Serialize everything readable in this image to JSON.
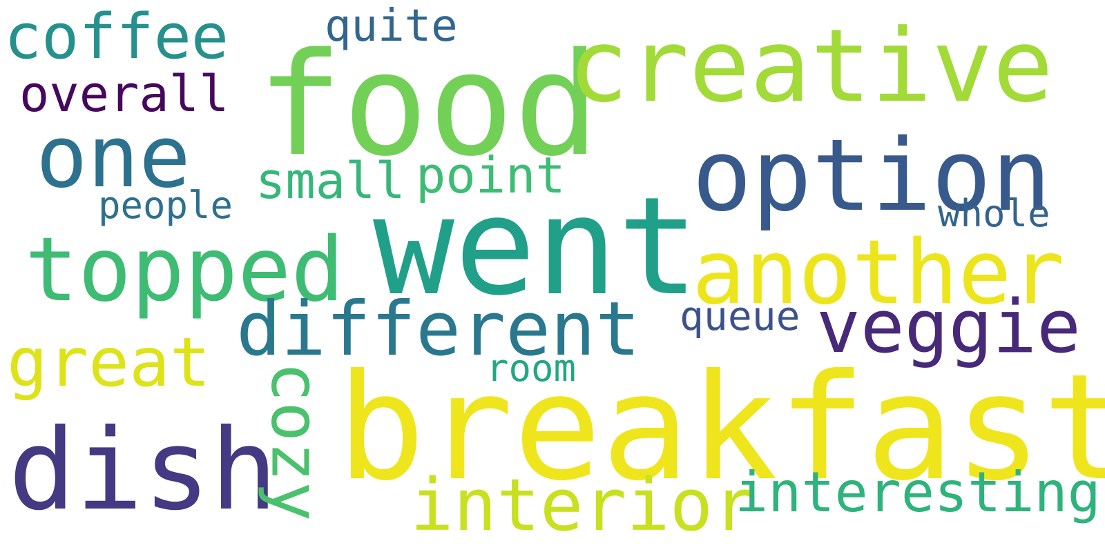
{
  "word_cloud": {
    "words": [
      {
        "text": "breakfast",
        "color": "#EFE51C"
      },
      {
        "text": "food",
        "color": "#73D056"
      },
      {
        "text": "went",
        "color": "#21A089"
      },
      {
        "text": "creative",
        "color": "#A2DA37"
      },
      {
        "text": "option",
        "color": "#38598C"
      },
      {
        "text": "another",
        "color": "#EDE51B"
      },
      {
        "text": "dish",
        "color": "#443983"
      },
      {
        "text": "topped",
        "color": "#3EBC73"
      },
      {
        "text": "different",
        "color": "#2A788E"
      },
      {
        "text": "one",
        "color": "#2C728E"
      },
      {
        "text": "coffee",
        "color": "#25918D"
      },
      {
        "text": "veggie",
        "color": "#482979"
      },
      {
        "text": "interior",
        "color": "#C8E020"
      },
      {
        "text": "great",
        "color": "#DDE318"
      },
      {
        "text": "interesting",
        "color": "#2EB37C"
      },
      {
        "text": "point",
        "color": "#3DBC74"
      },
      {
        "text": "small",
        "color": "#35B779"
      },
      {
        "text": "overall",
        "color": "#46085C"
      },
      {
        "text": "quite",
        "color": "#31668E"
      },
      {
        "text": "whole",
        "color": "#32648E"
      },
      {
        "text": "people",
        "color": "#2D708E"
      },
      {
        "text": "queue",
        "color": "#3B528B"
      },
      {
        "text": "room",
        "color": "#22A785"
      },
      {
        "text": "cozy",
        "color": "#4AC16D"
      }
    ]
  }
}
